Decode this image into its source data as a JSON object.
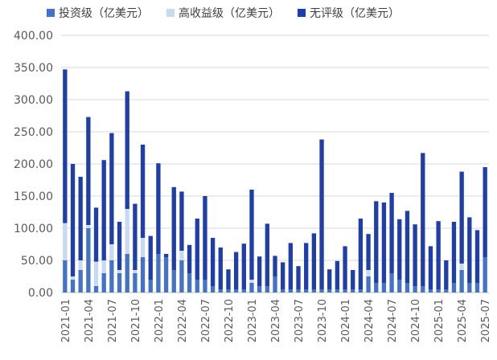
{
  "legend": [
    {
      "name": "投资级（亿美元）",
      "color": "#4472c4"
    },
    {
      "name": "高收益级（亿美元）",
      "color": "#c9d9f2"
    },
    {
      "name": "无评级（亿美元）",
      "color": "#1f3ea8"
    }
  ],
  "chart_data": {
    "type": "bar",
    "stacked": true,
    "categories": [
      "2021-01",
      "2021-02",
      "2021-03",
      "2021-04",
      "2021-05",
      "2021-06",
      "2021-07",
      "2021-08",
      "2021-09",
      "2021-10",
      "2021-11",
      "2021-12",
      "2022-01",
      "2022-02",
      "2022-03",
      "2022-04",
      "2022-05",
      "2022-06",
      "2022-07",
      "2022-08",
      "2022-09",
      "2022-10",
      "2022-11",
      "2022-12",
      "2023-01",
      "2023-02",
      "2023-03",
      "2023-04",
      "2023-05",
      "2023-06",
      "2023-07",
      "2023-08",
      "2023-09",
      "2023-10",
      "2023-11",
      "2023-12",
      "2024-01",
      "2024-02",
      "2024-03",
      "2024-04",
      "2024-05",
      "2024-06",
      "2024-07",
      "2024-08",
      "2024-09",
      "2024-10",
      "2024-11",
      "2024-12",
      "2025-01",
      "2025-02",
      "2025-03",
      "2025-04",
      "2025-05",
      "2025-06",
      "2025-07"
    ],
    "x_tick_labels": [
      "2021-01",
      "2021-04",
      "2021-07",
      "2021-10",
      "2022-01",
      "2022-04",
      "2022-07",
      "2022-10",
      "2023-01",
      "2023-04",
      "2023-07",
      "2023-10",
      "2024-01",
      "2024-04",
      "2024-07",
      "2024-10",
      "2025-01",
      "2025-04",
      "2025-07"
    ],
    "series": [
      {
        "name": "投资级（亿美元）",
        "color": "#4472c4",
        "values": [
          50,
          20,
          35,
          100,
          10,
          30,
          50,
          30,
          60,
          30,
          55,
          20,
          60,
          55,
          35,
          50,
          30,
          20,
          20,
          10,
          5,
          5,
          5,
          5,
          15,
          10,
          10,
          25,
          5,
          5,
          5,
          5,
          5,
          5,
          5,
          5,
          5,
          5,
          5,
          25,
          15,
          15,
          30,
          20,
          15,
          10,
          10,
          5,
          5,
          5,
          15,
          35,
          15,
          15,
          55
        ]
      },
      {
        "name": "高收益级（亿美元）",
        "color": "#c9d9f2",
        "values": [
          58,
          5,
          15,
          5,
          38,
          20,
          25,
          5,
          70,
          5,
          30,
          0,
          0,
          0,
          0,
          15,
          0,
          0,
          0,
          0,
          0,
          0,
          0,
          0,
          5,
          0,
          0,
          0,
          0,
          0,
          0,
          0,
          0,
          0,
          0,
          0,
          0,
          0,
          0,
          10,
          0,
          0,
          0,
          0,
          0,
          0,
          0,
          0,
          0,
          0,
          0,
          10,
          0,
          0,
          0
        ]
      },
      {
        "name": "无评级（亿美元）",
        "color": "#1f3ea8",
        "values": [
          239,
          175,
          130,
          168,
          84,
          156,
          173,
          75,
          183,
          103,
          145,
          68,
          141,
          5,
          129,
          92,
          44,
          95,
          130,
          75,
          65,
          31,
          58,
          71,
          140,
          46,
          97,
          32,
          42,
          72,
          36,
          72,
          87,
          233,
          31,
          44,
          67,
          30,
          110,
          56,
          127,
          125,
          125,
          94,
          112,
          96,
          207,
          67,
          106,
          45,
          95,
          143,
          102,
          82,
          140
        ]
      }
    ],
    "y_tick_labels": [
      "0.00",
      "50.00",
      "100.00",
      "150.00",
      "200.00",
      "250.00",
      "300.00",
      "350.00",
      "400.00"
    ],
    "ylim": [
      0,
      400
    ],
    "grid": true,
    "legend_position": "top"
  }
}
